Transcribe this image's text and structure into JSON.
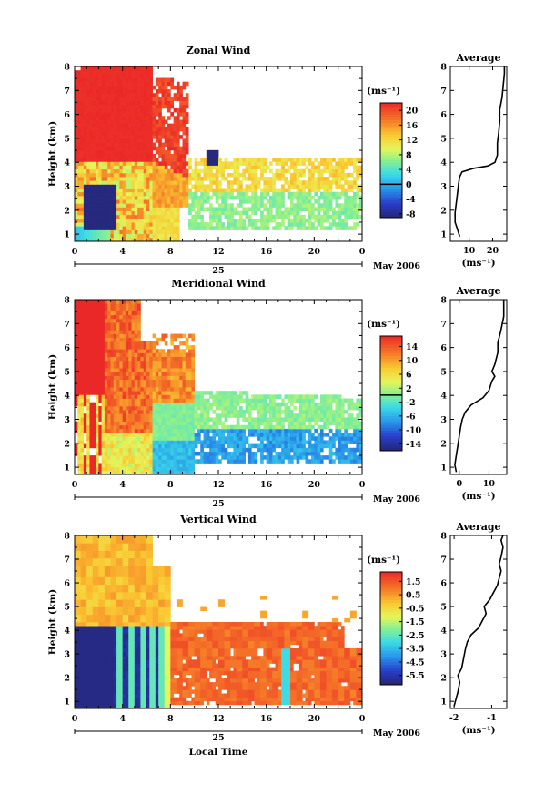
{
  "chart_data": [
    {
      "type": "heatmap",
      "title": "Zonal Wind",
      "ylabel": "Height (km)",
      "xlabel": "",
      "date_label": "25",
      "month_label": "May 2006",
      "xlim": [
        0,
        24
      ],
      "ylim": [
        0.7,
        8
      ],
      "x_ticks": [
        "0",
        "4",
        "8",
        "12",
        "16",
        "20",
        "0"
      ],
      "y_ticks": [
        "1",
        "2",
        "3",
        "4",
        "5",
        "6",
        "7",
        "8"
      ],
      "colorbar": {
        "unit": "(ms⁻¹)",
        "range": [
          -9,
          22
        ],
        "ticks": [
          "20",
          "16",
          "12",
          "8",
          "4",
          "0",
          "-4",
          "-8"
        ],
        "contour": 0
      },
      "profile": {
        "title": "Average",
        "xlabel": "(ms⁻¹)",
        "x_ticks": [
          "10",
          "20"
        ],
        "xlim": [
          2,
          26
        ],
        "points": [
          [
            6,
            0.9
          ],
          [
            5,
            1.2
          ],
          [
            4,
            1.5
          ],
          [
            4,
            1.9
          ],
          [
            4.5,
            2.3
          ],
          [
            5,
            2.7
          ],
          [
            5.5,
            3.1
          ],
          [
            6,
            3.4
          ],
          [
            7,
            3.6
          ],
          [
            12,
            3.75
          ],
          [
            18,
            3.85
          ],
          [
            21,
            4.0
          ],
          [
            22,
            4.3
          ],
          [
            22,
            4.8
          ],
          [
            22.5,
            5.2
          ],
          [
            23,
            5.7
          ],
          [
            23,
            6.2
          ],
          [
            24,
            6.7
          ],
          [
            24.5,
            7.2
          ],
          [
            25,
            7.7
          ],
          [
            25,
            8
          ]
        ]
      }
    },
    {
      "type": "heatmap",
      "title": "Meridional Wind",
      "ylabel": "Height (km)",
      "xlabel": "",
      "date_label": "25",
      "month_label": "May 2006",
      "xlim": [
        0,
        24
      ],
      "ylim": [
        0.7,
        8
      ],
      "x_ticks": [
        "0",
        "4",
        "8",
        "12",
        "16",
        "20",
        "0"
      ],
      "y_ticks": [
        "1",
        "2",
        "3",
        "4",
        "5",
        "6",
        "7",
        "8"
      ],
      "colorbar": {
        "unit": "(ms⁻¹)",
        "range": [
          -16,
          17
        ],
        "ticks": [
          "14",
          "10",
          "6",
          "2",
          "-2",
          "-6",
          "-10",
          "-14"
        ],
        "contour": 0
      },
      "profile": {
        "title": "Average",
        "xlabel": "(ms⁻¹)",
        "x_ticks": [
          "0",
          "10"
        ],
        "xlim": [
          -3,
          16
        ],
        "points": [
          [
            -1,
            0.8
          ],
          [
            -1.5,
            1.1
          ],
          [
            -1,
            1.5
          ],
          [
            -0.5,
            1.9
          ],
          [
            0,
            2.3
          ],
          [
            0.5,
            2.7
          ],
          [
            1,
            3.0
          ],
          [
            2,
            3.3
          ],
          [
            4,
            3.6
          ],
          [
            8,
            3.9
          ],
          [
            10,
            4.2
          ],
          [
            11,
            4.6
          ],
          [
            12,
            4.8
          ],
          [
            11,
            5.0
          ],
          [
            12,
            5.3
          ],
          [
            13,
            5.8
          ],
          [
            13,
            6.2
          ],
          [
            14,
            6.7
          ],
          [
            15,
            7.3
          ],
          [
            15,
            8
          ]
        ]
      }
    },
    {
      "type": "heatmap",
      "title": "Vertical Wind",
      "ylabel": "Height (km)",
      "xlabel": "Local Time",
      "date_label": "25",
      "month_label": "May 2006",
      "xlim": [
        0,
        24
      ],
      "ylim": [
        0.7,
        8
      ],
      "x_ticks": [
        "0",
        "4",
        "8",
        "12",
        "16",
        "20",
        "0"
      ],
      "y_ticks": [
        "1",
        "2",
        "3",
        "4",
        "5",
        "6",
        "7",
        "8"
      ],
      "colorbar": {
        "unit": "(ms⁻¹)",
        "range": [
          -6.2,
          2.2
        ],
        "ticks": [
          "1.5",
          "0.5",
          "-0.5",
          "-1.5",
          "-2.5",
          "-3.5",
          "-4.5",
          "-5.5"
        ],
        "contour": null
      },
      "profile": {
        "title": "Average",
        "xlabel": "(ms⁻¹)",
        "x_ticks": [
          "-2",
          "-1"
        ],
        "xlim": [
          -2.1,
          -0.6
        ],
        "points": [
          [
            -2.0,
            0.8
          ],
          [
            -1.95,
            1.1
          ],
          [
            -1.9,
            1.4
          ],
          [
            -1.85,
            1.8
          ],
          [
            -1.9,
            2.1
          ],
          [
            -1.8,
            2.4
          ],
          [
            -1.75,
            2.8
          ],
          [
            -1.7,
            3.2
          ],
          [
            -1.65,
            3.5
          ],
          [
            -1.55,
            3.8
          ],
          [
            -1.35,
            4.1
          ],
          [
            -1.25,
            4.4
          ],
          [
            -1.15,
            4.7
          ],
          [
            -1.2,
            5.0
          ],
          [
            -1.05,
            5.3
          ],
          [
            -0.95,
            5.6
          ],
          [
            -0.85,
            5.9
          ],
          [
            -0.8,
            6.2
          ],
          [
            -0.75,
            6.5
          ],
          [
            -0.8,
            6.8
          ],
          [
            -0.75,
            7.1
          ],
          [
            -0.7,
            7.5
          ],
          [
            -0.75,
            7.8
          ],
          [
            -0.7,
            8
          ]
        ]
      }
    }
  ]
}
